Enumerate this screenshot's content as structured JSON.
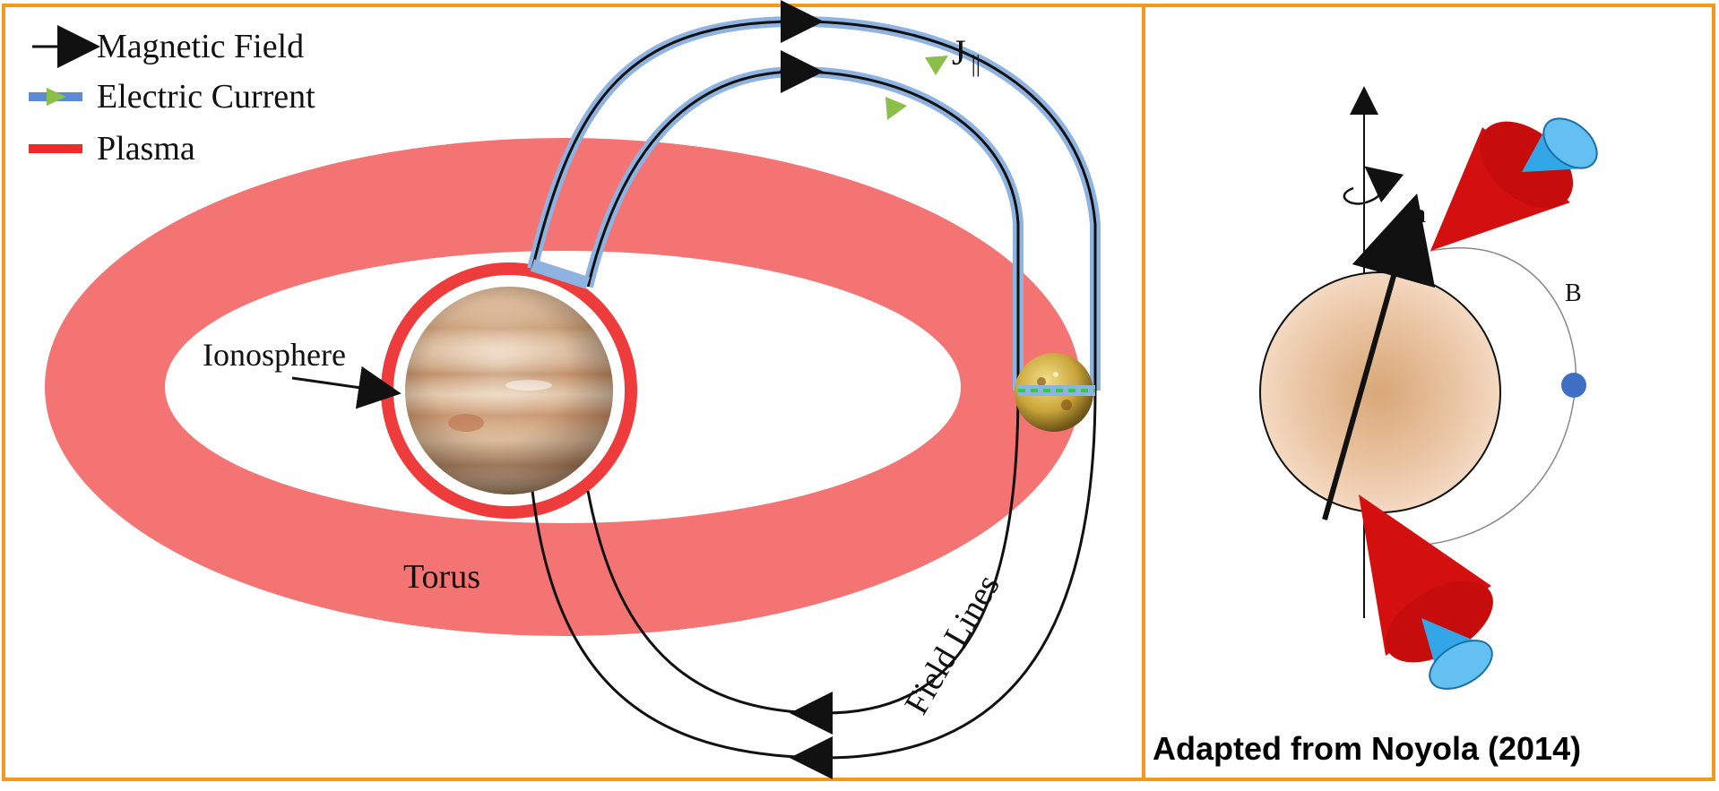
{
  "legend": [
    {
      "label": "Magnetic Field",
      "symbol": "black-arrow"
    },
    {
      "label": "Electric Current",
      "symbol": "blue-line-green-arrow"
    },
    {
      "label": "Plasma",
      "symbol": "red-line"
    }
  ],
  "labels": {
    "ionosphere": "Ionosphere",
    "torus": "Torus",
    "field_lines": "Field Lines",
    "current": "J",
    "current_subscript": "||",
    "moment": "m",
    "b_field": "B",
    "caption": "Adapted from Noyola (2014)"
  },
  "colors": {
    "frame": "#f39a1c",
    "plasma": "#f26262",
    "current": "#8fb3e0",
    "current_arrow": "#8bbf4a",
    "beam_red": "#d40f0f",
    "beam_blue": "#33a6e8",
    "planet_tan": "#e6c09a",
    "moon_dot": "#3f6fc4"
  },
  "icons": [
    "jupiter-planet",
    "io-moon",
    "rotation-arrow-icon"
  ]
}
